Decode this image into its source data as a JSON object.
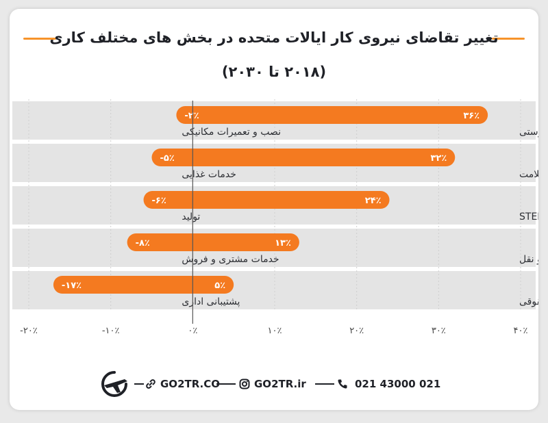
{
  "chart_data": {
    "type": "bar",
    "title": "تغییر تقاضای نیروی کار ایالات متحده در بخش های مختلف کاری",
    "subtitle": "(۲۰۱۸ تا ۲۰۳۰)",
    "orientation": "horizontal",
    "xlim": [
      -20,
      40
    ],
    "x_ticks": [
      "-۲۰٪",
      "-۱۰٪",
      "۰٪",
      "۱۰٪",
      "۲۰٪",
      "۳۰٪",
      "۴۰٪"
    ],
    "x_tick_values": [
      -20,
      -10,
      0,
      10,
      20,
      30,
      40
    ],
    "grid": true,
    "bar_color": "#f47a20",
    "rows": [
      {
        "pos_label": "دستیاران سلامت، تکنسین‌ها و کارشناسان تندرستی",
        "pos_value": 36,
        "pos_text": "۳۶٪",
        "neg_label": "نصب و تعمیرات مکانیکی",
        "neg_value": -2,
        "neg_text": "-۲٪"
      },
      {
        "pos_label": "متخصصین سلامت",
        "pos_value": 32,
        "pos_text": "۳۲٪",
        "neg_label": "خدمات غذایی",
        "neg_value": -5,
        "neg_text": "-۵٪"
      },
      {
        "pos_label": "متخصصان STEM",
        "pos_value": 24,
        "pos_text": "۲۴٪",
        "neg_label": "تولید",
        "neg_value": -6,
        "neg_text": "-۶٪"
      },
      {
        "pos_label": "خدمات حمل و نقل",
        "pos_value": 13,
        "pos_text": "۱۳٪",
        "neg_label": "خدمات مشتری و فروش",
        "neg_value": -8,
        "neg_text": "-۸٪"
      },
      {
        "pos_label": "خدمات تجاری و حقوقی",
        "pos_value": 5,
        "pos_text": "۵٪",
        "neg_label": "پشتیبانی اداری",
        "neg_value": -17,
        "neg_text": "-۱۷٪"
      }
    ]
  },
  "footer": {
    "website": "GO2TR.CO",
    "instagram": "GO2TR.ir",
    "phone": "021 43000 021",
    "icons": [
      "logo-plane-icon",
      "link-icon",
      "instagram-icon",
      "phone-icon"
    ]
  }
}
